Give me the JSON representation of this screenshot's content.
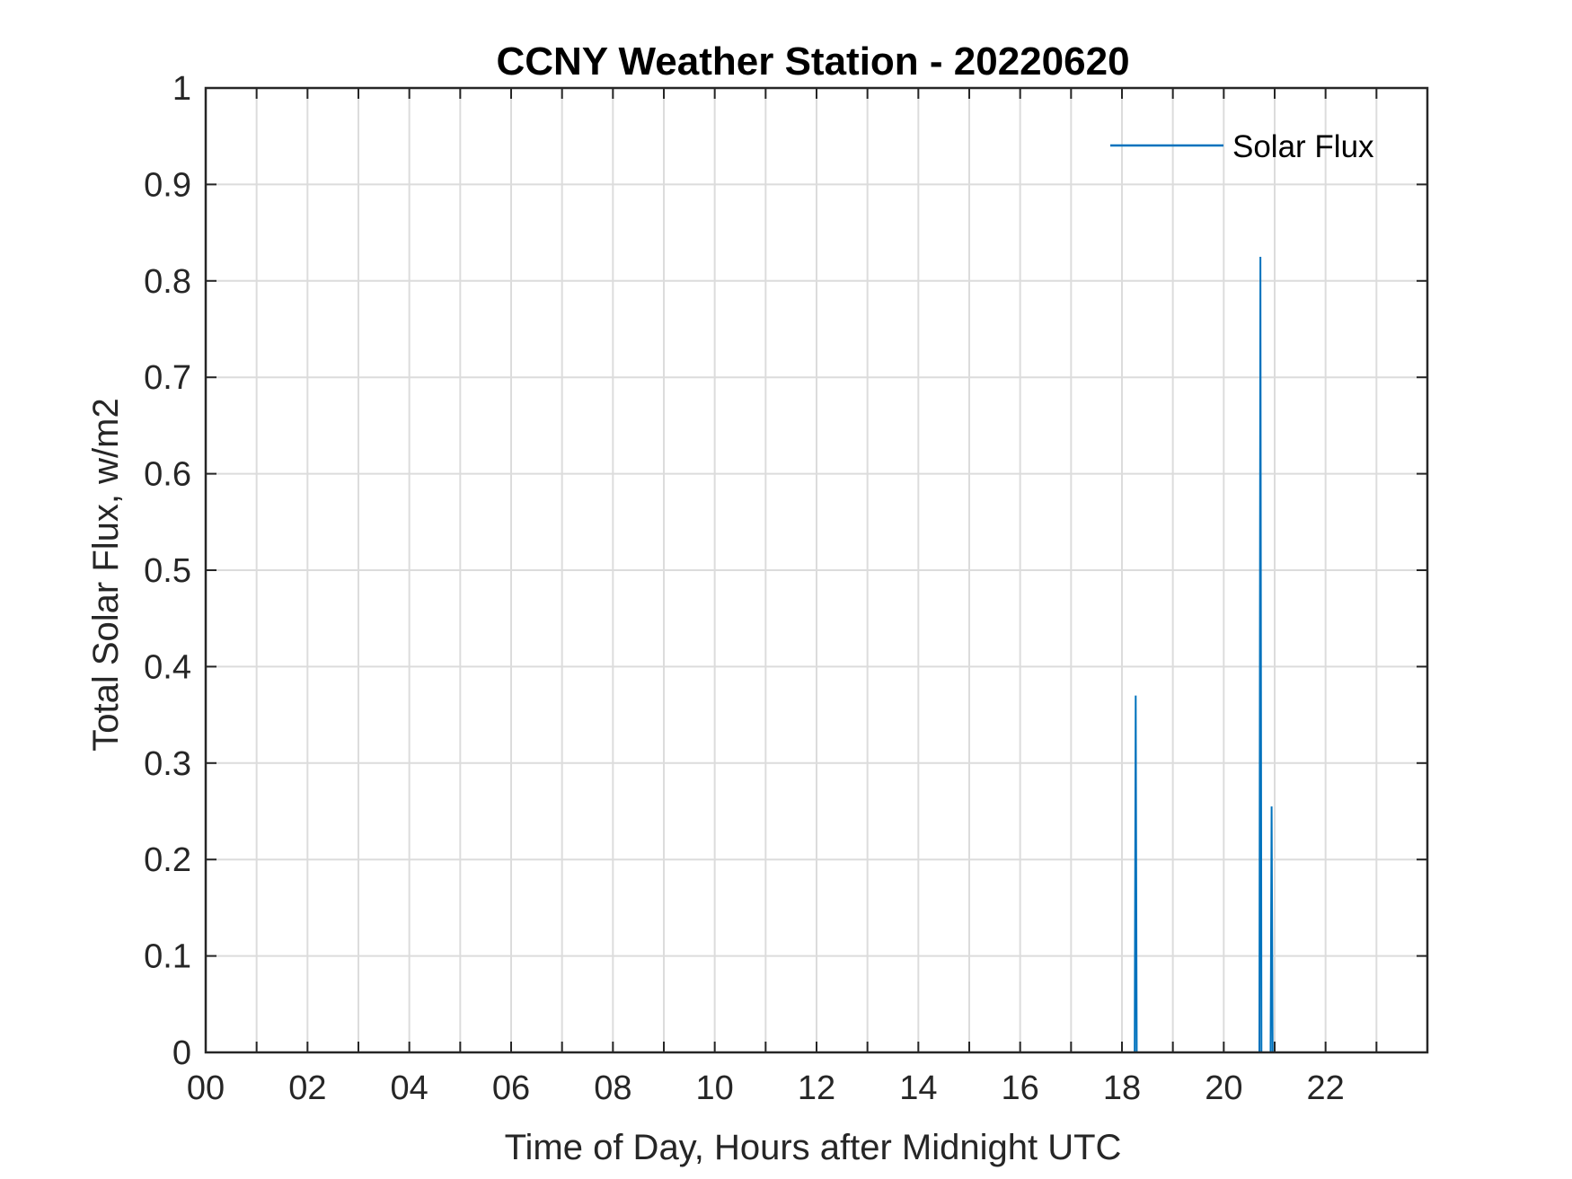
{
  "chart_data": {
    "type": "line",
    "title": "CCNY Weather Station - 20220620",
    "xlabel": "Time of Day, Hours after Midnight UTC",
    "ylabel": "Total Solar Flux, w/m2",
    "xlim": [
      0,
      24
    ],
    "ylim": [
      0,
      1
    ],
    "x_ticks": [
      0,
      2,
      4,
      6,
      8,
      10,
      12,
      14,
      16,
      18,
      20,
      22
    ],
    "x_tick_labels": [
      "00",
      "02",
      "04",
      "06",
      "08",
      "10",
      "12",
      "14",
      "16",
      "18",
      "20",
      "22"
    ],
    "y_ticks": [
      0,
      0.1,
      0.2,
      0.3,
      0.4,
      0.5,
      0.6,
      0.7,
      0.8,
      0.9,
      1
    ],
    "y_tick_labels": [
      "0",
      "0.1",
      "0.2",
      "0.3",
      "0.4",
      "0.5",
      "0.6",
      "0.7",
      "0.8",
      "0.9",
      "1"
    ],
    "grid": true,
    "legend": {
      "position": "top-right",
      "entries": [
        "Solar Flux"
      ]
    },
    "series": [
      {
        "name": "Solar Flux",
        "color": "#0072BD",
        "x": [
          0,
          18.25,
          18.27,
          18.29,
          20.7,
          20.72,
          20.74,
          20.92,
          20.94,
          20.96,
          24
        ],
        "y": [
          0,
          0,
          0.37,
          0,
          0,
          0.825,
          0,
          0,
          0.255,
          0,
          0
        ]
      }
    ]
  }
}
